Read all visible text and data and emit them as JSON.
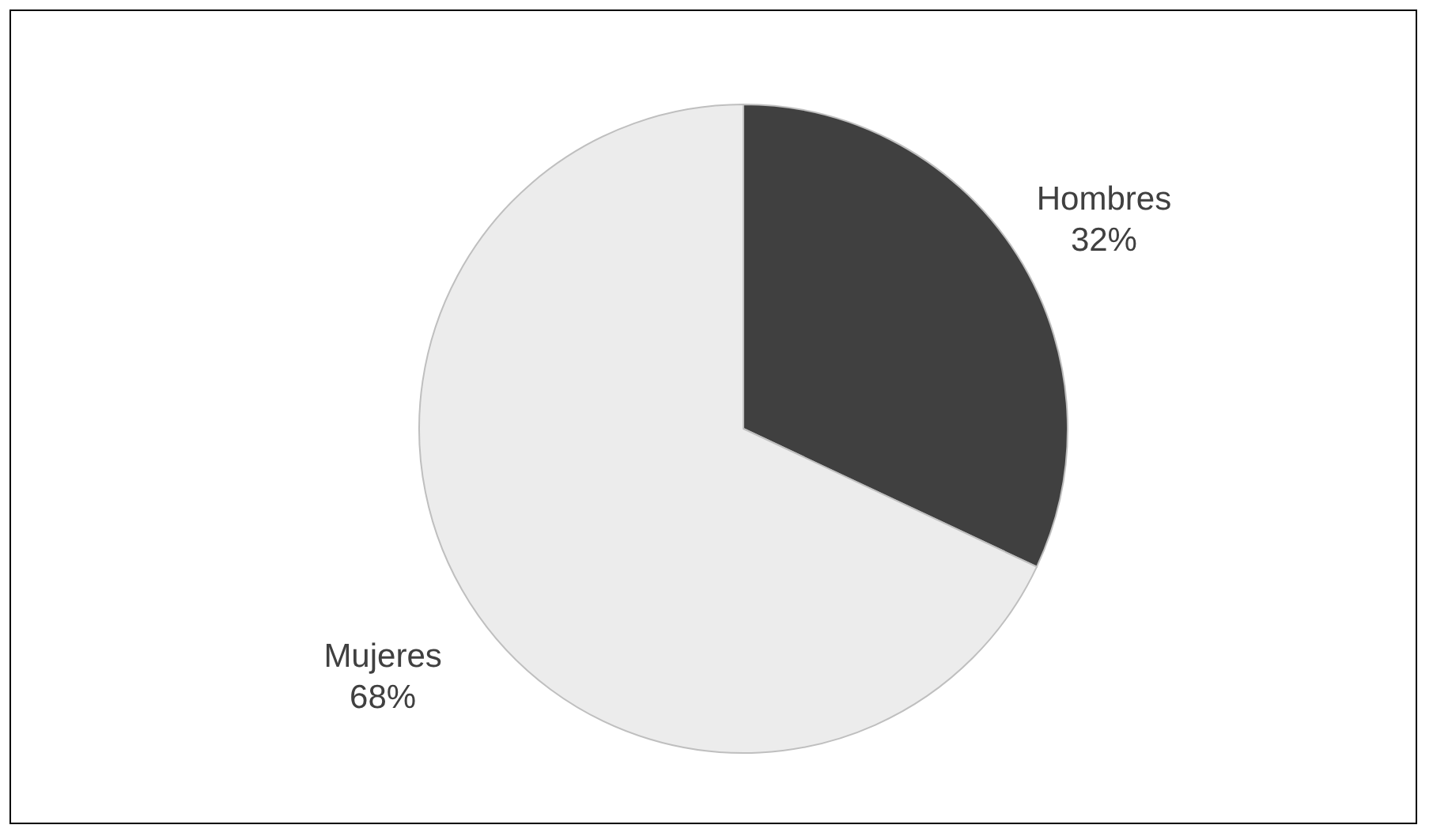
{
  "chart_data": {
    "type": "pie",
    "categories": [
      "Hombres",
      "Mujeres"
    ],
    "values": [
      32,
      68
    ],
    "colors": [
      "#404040",
      "#ececec"
    ],
    "value_labels": [
      "32%",
      "68%"
    ]
  }
}
